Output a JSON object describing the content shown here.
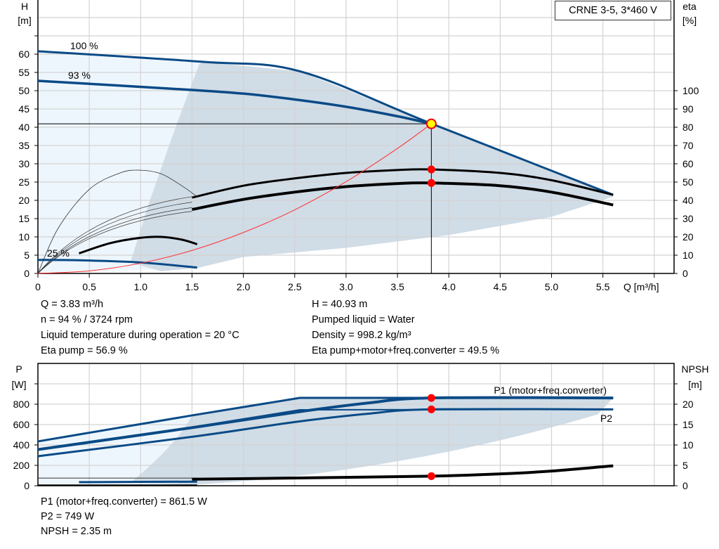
{
  "title_box": "CRNE 3-5, 3*460 V",
  "colors": {
    "curve_blue": "#0a4a86",
    "region_dark": "#d0dce6",
    "region_light": "#eef6fd",
    "duty_point": "#ff0000",
    "system_curve": "#ff3030",
    "grid": "#d3d3d3"
  },
  "info_top": {
    "left": [
      "Q = 3.83 m³/h",
      "n = 94 % / 3724 rpm",
      "Liquid temperature during operation = 20 °C",
      "Eta pump = 56.9 %"
    ],
    "right": [
      "H = 40.93 m",
      "Pumped liquid = Water",
      "Density = 998.2 kg/m³",
      "Eta pump+motor+freq.converter = 49.5 %"
    ]
  },
  "info_bottom": [
    "P1 (motor+freq.converter) = 861.5 W",
    "P2 = 749 W",
    "NPSH = 2.35 m"
  ],
  "chart_data": [
    {
      "type": "line",
      "xlabel": "Q [m³/h]",
      "ylabel": "H [m]",
      "ylabel_name": "H",
      "ylabel_unit": "[m]",
      "y2label_name": "eta",
      "y2label_unit": "[%]",
      "xlim": [
        0,
        6.0
      ],
      "ylim": [
        0,
        70
      ],
      "y2lim": [
        0,
        140
      ],
      "xticks": [
        "0",
        "0.5",
        "1.0",
        "1.5",
        "2.0",
        "2.5",
        "3.0",
        "3.5",
        "4.0",
        "4.5",
        "5.0",
        "5.5"
      ],
      "yticks": [
        "0",
        "5",
        "10",
        "15",
        "20",
        "25",
        "30",
        "35",
        "40",
        "45",
        "50",
        "55",
        "60"
      ],
      "y2ticks": [
        "0",
        "10",
        "20",
        "30",
        "40",
        "50",
        "60",
        "70",
        "80",
        "90",
        "100"
      ],
      "grid": true,
      "curve_labels": [
        "100 %",
        "93 %",
        "25 %"
      ],
      "series": [
        {
          "id": "h-100",
          "axis": "H",
          "x": [
            0,
            1.6,
            2.55,
            3.83,
            5.6
          ],
          "y": [
            60.8,
            57.9,
            55.3,
            41.0,
            21.5
          ]
        },
        {
          "id": "h-93",
          "axis": "H",
          "x": [
            0,
            1.5,
            2.0,
            2.5,
            3.0,
            3.5,
            3.83
          ],
          "y": [
            52.7,
            50.2,
            49.2,
            47.6,
            45.6,
            43.0,
            40.93
          ]
        },
        {
          "id": "h-25",
          "axis": "H",
          "x": [
            0,
            0.4,
            1.0,
            1.55
          ],
          "y": [
            3.7,
            3.6,
            3.0,
            1.6
          ]
        },
        {
          "id": "eta-pump",
          "axis": "eta",
          "x": [
            1.5,
            2.0,
            2.5,
            3.0,
            3.5,
            3.83,
            4.5,
            5.0,
            5.6
          ],
          "y": [
            41.5,
            48,
            52,
            55,
            56.6,
            56.9,
            55,
            51,
            43
          ]
        },
        {
          "id": "eta-total",
          "axis": "eta",
          "x": [
            1.5,
            2.0,
            2.5,
            3.0,
            3.5,
            3.83,
            4.5,
            5.0,
            5.6
          ],
          "y": [
            35,
            40.5,
            44.5,
            47.5,
            49.2,
            49.5,
            48,
            44.5,
            37.5
          ]
        },
        {
          "id": "eta-pump-25",
          "axis": "eta",
          "x": [
            0.4,
            0.7,
            1.0,
            1.2,
            1.4,
            1.55
          ],
          "y": [
            11,
            16.5,
            19.5,
            20,
            18.5,
            16
          ]
        },
        {
          "id": "eta-arc",
          "axis": "eta",
          "x": [
            0,
            0.2,
            0.5,
            0.8,
            1.0,
            1.2,
            1.4,
            1.55
          ],
          "y": [
            0,
            25,
            46,
            55,
            56.5,
            54.5,
            48,
            42
          ]
        },
        {
          "id": "system-curve",
          "axis": "H",
          "x": [
            0,
            0.5,
            1.0,
            1.5,
            2.0,
            2.5,
            3.0,
            3.5,
            3.83
          ],
          "y": [
            0,
            0.7,
            2.8,
            6.3,
            11.2,
            17.4,
            25.1,
            34.2,
            40.93
          ]
        }
      ],
      "duty_points": [
        {
          "name": "H",
          "x": 3.83,
          "y": 40.93,
          "axis": "H"
        },
        {
          "name": "Eta pump",
          "x": 3.83,
          "y": 56.9,
          "axis": "eta"
        },
        {
          "name": "Eta pump+motor+freq.converter",
          "x": 3.83,
          "y": 49.5,
          "axis": "eta"
        }
      ]
    },
    {
      "type": "line",
      "ylabel_name": "P",
      "ylabel_unit": "[W]",
      "y2label_name": "NPSH",
      "y2label_unit": "[m]",
      "xlim": [
        0,
        6.0
      ],
      "ylim": [
        0,
        1000
      ],
      "y2lim": [
        0,
        25
      ],
      "yticks": [
        "0",
        "200",
        "400",
        "600",
        "800"
      ],
      "y2ticks": [
        "0",
        "5",
        "10",
        "15",
        "20"
      ],
      "grid": true,
      "series": [
        {
          "id": "p1-max",
          "name": "P1 (motor+freq.converter)",
          "axis": "P",
          "x": [
            0,
            1.5,
            2.55,
            5.6
          ],
          "y": [
            435,
            690,
            862,
            862
          ]
        },
        {
          "id": "p1",
          "name": "P1 (motor+freq.converter)",
          "axis": "P",
          "x": [
            0,
            1.5,
            2.5,
            3.2,
            3.83,
            5.6
          ],
          "y": [
            355,
            570,
            720,
            810,
            861.5,
            861.5
          ]
        },
        {
          "id": "p2",
          "name": "P2",
          "axis": "P",
          "x": [
            0,
            1.5,
            2.5,
            3.2,
            3.83,
            5.6
          ],
          "y": [
            290,
            480,
            625,
            705,
            749,
            749
          ]
        },
        {
          "id": "p2-max",
          "name": "P2",
          "axis": "P",
          "x": [
            1.5,
            2.55,
            5.6
          ],
          "y": [
            575,
            745,
            749
          ]
        },
        {
          "id": "npsh",
          "axis": "NPSH",
          "x": [
            1.5,
            2.5,
            3.83,
            4.5,
            5.0,
            5.6
          ],
          "y": [
            1.6,
            1.9,
            2.35,
            2.9,
            3.6,
            4.9
          ]
        }
      ],
      "duty_points": [
        {
          "name": "P1 (motor+freq.converter)",
          "x": 3.83,
          "y": 861.5,
          "axis": "P"
        },
        {
          "name": "P2",
          "x": 3.83,
          "y": 749,
          "axis": "P"
        },
        {
          "name": "NPSH",
          "x": 3.83,
          "y": 2.35,
          "axis": "NPSH"
        }
      ]
    }
  ]
}
